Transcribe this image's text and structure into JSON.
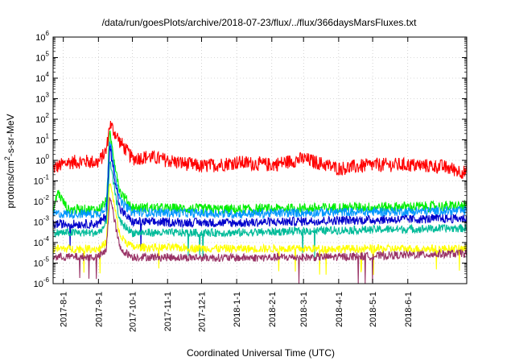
{
  "chart_data": {
    "type": "line",
    "title": "/data/run/goesPlots/archive/2018-07-23/flux/../flux/366daysMarsFluxes.txt",
    "xlabel": "Coordinated Universal Time (UTC)",
    "ylabel": "protons/cm2-s-sr-MeV",
    "ylabel_parts": {
      "pre": "protons/cm",
      "sup": "2",
      "post": "-s-sr-MeV"
    },
    "yscale": "log",
    "ylim": [
      1e-06,
      1000000.0
    ],
    "xlim": [
      "2017-07-23",
      "2018-07-23"
    ],
    "grid": true,
    "legend": "none",
    "x_ticks": [
      {
        "label": "2017-8-1",
        "date": "2017-08-01"
      },
      {
        "label": "2017-9-1",
        "date": "2017-09-01"
      },
      {
        "label": "2017-10-1",
        "date": "2017-10-01"
      },
      {
        "label": "2017-11-1",
        "date": "2017-11-01"
      },
      {
        "label": "2017-12-1",
        "date": "2017-12-01"
      },
      {
        "label": "2018-1-1",
        "date": "2018-01-01"
      },
      {
        "label": "2018-2-1",
        "date": "2018-02-01"
      },
      {
        "label": "2018-3-1",
        "date": "2018-03-01"
      },
      {
        "label": "2018-4-1",
        "date": "2018-04-01"
      },
      {
        "label": "2018-5-1",
        "date": "2018-05-01"
      },
      {
        "label": "2018-6-1",
        "date": "2018-06-01"
      }
    ],
    "y_ticks": [
      {
        "base": "10",
        "exp": "-6",
        "value": 1e-06
      },
      {
        "base": "10",
        "exp": "-5",
        "value": 1e-05
      },
      {
        "base": "10",
        "exp": "-4",
        "value": 0.0001
      },
      {
        "base": "10",
        "exp": "-3",
        "value": 0.001
      },
      {
        "base": "10",
        "exp": "-2",
        "value": 0.01
      },
      {
        "base": "10",
        "exp": "-1",
        "value": 0.1
      },
      {
        "base": "10",
        "exp": "0",
        "value": 1
      },
      {
        "base": "10",
        "exp": "1",
        "value": 10
      },
      {
        "base": "10",
        "exp": "2",
        "value": 100
      },
      {
        "base": "10",
        "exp": "3",
        "value": 1000
      },
      {
        "base": "10",
        "exp": "4",
        "value": 10000
      },
      {
        "base": "10",
        "exp": "5",
        "value": 100000
      },
      {
        "base": "10",
        "exp": "6",
        "value": 1000000
      }
    ],
    "series": [
      {
        "color": "#ff0000",
        "x": [
          "2017-07-23",
          "2017-08-05",
          "2017-08-20",
          "2017-09-01",
          "2017-09-08",
          "2017-09-11",
          "2017-09-20",
          "2017-10-01",
          "2017-10-15",
          "2017-11-01",
          "2017-12-01",
          "2018-01-01",
          "2018-02-01",
          "2018-03-01",
          "2018-04-01",
          "2018-05-01",
          "2018-06-01",
          "2018-07-01",
          "2018-07-23"
        ],
        "y": [
          0.4,
          0.8,
          0.9,
          0.8,
          3,
          60,
          8,
          1.2,
          1.5,
          1.0,
          0.5,
          0.8,
          0.6,
          1.2,
          0.4,
          0.6,
          0.6,
          0.5,
          0.25
        ],
        "spread": 0.35
      },
      {
        "color": "#00ee00",
        "x": [
          "2017-07-23",
          "2017-07-27",
          "2017-08-05",
          "2017-09-01",
          "2017-09-08",
          "2017-09-11",
          "2017-09-20",
          "2017-10-01",
          "2018-01-01",
          "2018-04-01",
          "2018-07-23"
        ],
        "y": [
          0.003,
          0.03,
          0.004,
          0.004,
          0.01,
          20,
          0.03,
          0.005,
          0.004,
          0.005,
          0.006
        ],
        "spread": 0.25
      },
      {
        "color": "#0096ff",
        "x": [
          "2017-07-23",
          "2017-09-01",
          "2017-09-08",
          "2017-09-11",
          "2017-09-20",
          "2017-10-01",
          "2018-01-01",
          "2018-04-01",
          "2018-07-23"
        ],
        "y": [
          0.0025,
          0.0025,
          0.006,
          10,
          0.01,
          0.003,
          0.0025,
          0.003,
          0.0035
        ],
        "spread": 0.22
      },
      {
        "color": "#0000cc",
        "x": [
          "2017-07-23",
          "2017-09-01",
          "2017-09-08",
          "2017-09-11",
          "2017-09-20",
          "2017-10-01",
          "2018-01-01",
          "2018-04-01",
          "2018-07-23"
        ],
        "y": [
          0.0008,
          0.0008,
          0.002,
          5,
          0.004,
          0.001,
          0.0009,
          0.0012,
          0.0015
        ],
        "spread": 0.22
      },
      {
        "color": "#00bb99",
        "x": [
          "2017-07-23",
          "2017-09-01",
          "2017-09-08",
          "2017-09-11",
          "2017-09-20",
          "2017-10-01",
          "2018-01-01",
          "2018-04-01",
          "2018-07-23"
        ],
        "y": [
          0.0003,
          0.0003,
          0.0008,
          1,
          0.001,
          0.0003,
          0.0003,
          0.0004,
          0.0005
        ],
        "spread": 0.2
      },
      {
        "color": "#ffff00",
        "x": [
          "2017-07-23",
          "2017-09-01",
          "2017-09-08",
          "2017-09-11",
          "2017-09-20",
          "2017-10-01",
          "2018-01-01",
          "2018-04-01",
          "2018-07-23"
        ],
        "y": [
          5e-05,
          5e-05,
          0.0001,
          0.1,
          0.0002,
          6e-05,
          5e-05,
          5e-05,
          5e-05
        ],
        "spread": 0.2
      },
      {
        "color": "#993366",
        "x": [
          "2017-07-23",
          "2017-09-01",
          "2017-09-08",
          "2017-09-11",
          "2017-09-20",
          "2017-10-01",
          "2018-01-01",
          "2018-04-01",
          "2018-07-23"
        ],
        "y": [
          2e-05,
          2e-05,
          4e-05,
          0.02,
          5e-05,
          2e-05,
          1.8e-05,
          2e-05,
          3e-05
        ],
        "spread": 0.2
      }
    ]
  }
}
